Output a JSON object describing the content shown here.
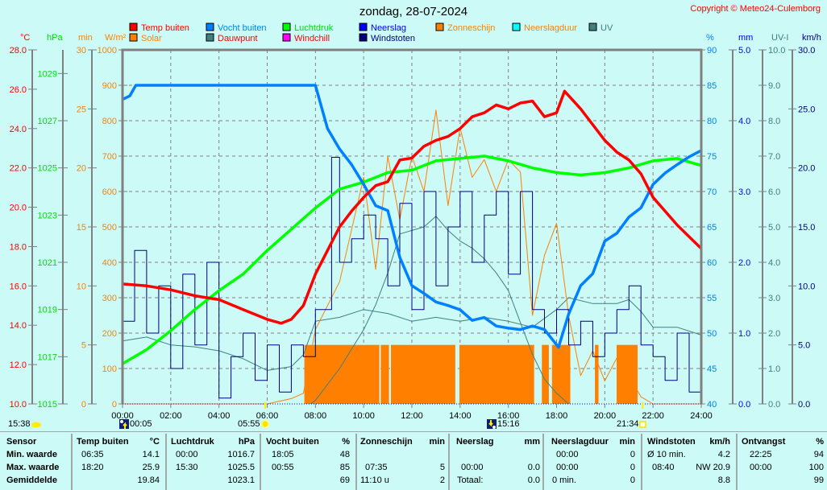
{
  "header": {
    "title": "zondag, 28-07-2024",
    "copyright": "Copyright © Meteo24-Culemborg"
  },
  "legend": [
    {
      "label": "Temp buiten",
      "swatch": "#ff0000",
      "text_color": "#ff0000"
    },
    {
      "label": "Vocht buiten",
      "swatch": "#0080ff",
      "text_color": "#0080ff"
    },
    {
      "label": "Luchtdruk",
      "swatch": "#00ff00",
      "text_color": "#00e000"
    },
    {
      "label": "Neerslag",
      "swatch": "#0000ff",
      "text_color": "#0000ff"
    },
    {
      "label": "Zonneschijn",
      "swatch": "#ff8000",
      "text_color": "#ff8000"
    },
    {
      "label": "Neerslagduur",
      "swatch": "#00ffff",
      "text_color": "#ff8000"
    },
    {
      "label": "UV",
      "swatch": "#408080",
      "text_color": "#408080"
    },
    {
      "label": "Solar",
      "swatch": "#ff8000",
      "text_color": "#ff8000"
    },
    {
      "label": "Dauwpunt",
      "swatch": "#408080",
      "text_color": "#ff0000"
    },
    {
      "label": "Windchill",
      "swatch": "#ff00ff",
      "text_color": "#ff0000"
    },
    {
      "label": "Windstoten",
      "swatch": "#000080",
      "text_color": "#000080"
    }
  ],
  "astro": {
    "moon_phase_time": "15:38",
    "moonrise": "00:05",
    "sunrise": "05:55",
    "moonset": "15:16",
    "sunset": "21:34"
  },
  "chart_data": {
    "type": "line",
    "title": "zondag, 28-07-2024",
    "x_range": [
      0,
      24
    ],
    "x_ticks": [
      "00:00",
      "02:00",
      "04:00",
      "06:00",
      "08:00",
      "10:00",
      "12:00",
      "14:00",
      "16:00",
      "18:00",
      "20:00",
      "22:00",
      "24:00"
    ],
    "grid": true,
    "axes": {
      "temp": {
        "unit": "°C",
        "range": [
          10,
          28
        ],
        "color": "#ff0000",
        "ticks": [
          "10.0",
          "12.0",
          "14.0",
          "16.0",
          "18.0",
          "20.0",
          "22.0",
          "24.0",
          "26.0",
          "28.0"
        ]
      },
      "hpa": {
        "unit": "hPa",
        "range": [
          1015,
          1030
        ],
        "color": "#00e000",
        "ticks": [
          "1015",
          "1017",
          "1019",
          "1021",
          "1023",
          "1025",
          "1027",
          "1029"
        ]
      },
      "min": {
        "unit": "min",
        "range": [
          0,
          30
        ],
        "color": "#ff8000",
        "ticks": [
          "0",
          "5",
          "10",
          "15",
          "20",
          "25",
          "30"
        ]
      },
      "wm2": {
        "unit": "W/m²",
        "range": [
          0,
          1000
        ],
        "color": "#ff8000",
        "ticks": [
          "0",
          "100",
          "200",
          "300",
          "400",
          "500",
          "600",
          "700",
          "800",
          "900",
          "1000"
        ]
      },
      "pct": {
        "unit": "%",
        "range": [
          40,
          90
        ],
        "color": "#0080ff",
        "ticks": [
          "40",
          "45",
          "50",
          "55",
          "60",
          "65",
          "70",
          "75",
          "80",
          "85",
          "90"
        ]
      },
      "mm": {
        "unit": "mm",
        "range": [
          0,
          5
        ],
        "color": "#0000ff",
        "ticks": [
          "0.0",
          "1.0",
          "2.0",
          "3.0",
          "4.0",
          "5.0"
        ]
      },
      "uv": {
        "unit": "UV-I",
        "range": [
          0,
          10
        ],
        "color": "#408080",
        "ticks": [
          "0.0",
          "1.0",
          "2.0",
          "3.0",
          "4.0",
          "5.0",
          "6.0",
          "7.0",
          "8.0",
          "9.0",
          "10.0"
        ]
      },
      "kmh": {
        "unit": "km/h",
        "range": [
          0,
          30
        ],
        "color": "#000080",
        "ticks": [
          "0.0",
          "5.0",
          "10.0",
          "15.0",
          "20.0",
          "25.0",
          "30.0"
        ]
      }
    },
    "sunshine_bars": {
      "name": "Zonneschijn",
      "axis": "min",
      "color": "#ff8000",
      "value": 5,
      "intervals": [
        [
          7.54,
          10.65
        ],
        [
          10.71,
          11.05
        ],
        [
          11.13,
          13.8
        ],
        [
          13.97,
          17.07
        ],
        [
          17.39,
          17.68
        ],
        [
          17.81,
          18.57
        ],
        [
          19.59,
          19.74
        ],
        [
          20.49,
          21.36
        ]
      ]
    },
    "series": [
      {
        "name": "Dauwpunt",
        "axis": "temp",
        "color": "#408080",
        "width": 1,
        "x": [
          0,
          1,
          2,
          3,
          4,
          5,
          6,
          7,
          7.5,
          8,
          9,
          10,
          11,
          12,
          13,
          14,
          15,
          16,
          17,
          18,
          18.5,
          19.5,
          20.5,
          21,
          21.5,
          22,
          23,
          24
        ],
        "y": [
          13.2,
          13.4,
          13.0,
          12.9,
          12.7,
          12.3,
          11.7,
          11.9,
          12.5,
          14.2,
          14.4,
          14.8,
          14.6,
          14.2,
          14.4,
          14.2,
          14.4,
          14.2,
          13.9,
          14.8,
          15.4,
          15.1,
          15.1,
          15.3,
          14.7,
          13.9,
          13.9,
          13.5
        ]
      },
      {
        "name": "UV",
        "axis": "uv",
        "color": "#408080",
        "width": 1,
        "x": [
          7.8,
          8,
          9,
          10,
          10.5,
          11,
          11.5,
          12,
          12.5,
          13,
          13.5,
          14,
          14.5,
          15,
          15.5,
          16,
          16.5,
          17,
          17.5,
          18,
          18.5
        ],
        "y": [
          0,
          0.1,
          1.0,
          2.1,
          2.8,
          3.7,
          4.8,
          4.9,
          5.0,
          5.3,
          4.9,
          4.6,
          4.4,
          4.1,
          3.7,
          3.2,
          2.3,
          1.4,
          0.7,
          0.3,
          0
        ]
      },
      {
        "name": "Solar",
        "axis": "wm2",
        "color": "#ff8000",
        "width": 1,
        "x": [
          0,
          6,
          7,
          7.5,
          8,
          9,
          10,
          10.5,
          11,
          11.5,
          12,
          12.5,
          13,
          13.5,
          14,
          14.5,
          15,
          15.5,
          16,
          16.5,
          17,
          17.5,
          18,
          18.5,
          19,
          19.5,
          20,
          20.5,
          21,
          21.5,
          22,
          24
        ],
        "y": [
          0,
          0,
          15,
          30,
          210,
          345,
          640,
          380,
          700,
          520,
          700,
          600,
          830,
          560,
          780,
          640,
          690,
          600,
          690,
          655,
          250,
          420,
          510,
          250,
          80,
          150,
          65,
          130,
          80,
          20,
          0,
          0
        ]
      },
      {
        "name": "Windstoten",
        "axis": "kmh",
        "color": "#000080",
        "width": 1,
        "step": true,
        "x": [
          0,
          0.5,
          1,
          1.5,
          2,
          2.5,
          3,
          3.5,
          4,
          4.5,
          5,
          5.5,
          6,
          6.5,
          7,
          7.5,
          8,
          8.67,
          9,
          9.5,
          10,
          10.5,
          11,
          11.5,
          12,
          12.5,
          13,
          13.5,
          14,
          14.5,
          15,
          15.5,
          16,
          16.5,
          17,
          17.5,
          18,
          18.5,
          19,
          19.5,
          20,
          20.5,
          21,
          21.5,
          22,
          22.5,
          23,
          23.5,
          24
        ],
        "y": [
          7,
          13,
          6,
          10,
          3,
          11,
          5,
          12,
          0.5,
          4,
          6,
          2,
          5,
          1,
          5,
          4,
          8,
          20.9,
          12,
          14,
          16,
          14,
          10,
          17,
          8,
          18,
          10,
          15,
          18,
          12,
          16,
          18,
          11,
          18,
          8,
          6,
          8,
          5,
          7,
          4,
          6,
          8,
          10,
          5,
          4,
          2,
          6,
          1,
          4
        ]
      },
      {
        "name": "Luchtdruk",
        "axis": "hpa",
        "color": "#00ff00",
        "width": 3.5,
        "x": [
          0,
          1,
          2,
          3,
          4,
          5,
          6,
          7,
          8,
          9,
          10,
          11,
          12,
          13,
          14,
          15,
          16,
          17,
          18,
          19,
          20,
          21,
          22,
          23,
          24
        ],
        "y": [
          1016.7,
          1017.3,
          1018.1,
          1019.0,
          1019.8,
          1020.5,
          1021.5,
          1022.4,
          1023.3,
          1024.1,
          1024.4,
          1024.8,
          1024.9,
          1025.3,
          1025.4,
          1025.5,
          1025.3,
          1025.0,
          1024.8,
          1024.7,
          1024.8,
          1025.0,
          1025.3,
          1025.4,
          1025.1
        ]
      },
      {
        "name": "Vocht buiten",
        "axis": "pct",
        "color": "#0080ff",
        "width": 3.5,
        "x": [
          0,
          0.3,
          0.55,
          1,
          4.5,
          5,
          8,
          8.5,
          9,
          9.5,
          10,
          10.5,
          11,
          11.5,
          12,
          12.5,
          13,
          13.5,
          14,
          14.5,
          15,
          15.5,
          16,
          16.5,
          17,
          17.5,
          18.08,
          18.5,
          19,
          19.5,
          20,
          20.5,
          21,
          21.5,
          22,
          22.5,
          23,
          23.5,
          24
        ],
        "y": [
          83,
          83.5,
          85,
          85,
          85,
          85,
          85,
          78.9,
          76,
          73.8,
          71,
          68,
          67.3,
          60.7,
          56.7,
          55.6,
          54.4,
          53.9,
          53.3,
          51.8,
          52.2,
          51,
          50.7,
          50.5,
          51,
          50.5,
          48,
          52.7,
          56.7,
          58.4,
          63,
          64.1,
          66.4,
          67.7,
          71,
          72.6,
          73.8,
          74.9,
          75.8
        ]
      },
      {
        "name": "Temp buiten",
        "axis": "temp",
        "color": "#ff0000",
        "width": 3.5,
        "x": [
          0,
          1,
          2,
          3,
          4,
          5,
          6,
          6.58,
          7,
          7.5,
          8,
          8.5,
          9,
          9.5,
          10,
          10.5,
          11,
          11.5,
          12,
          12.5,
          13,
          13.5,
          14,
          14.5,
          15,
          15.5,
          16,
          16.5,
          17,
          17.5,
          18,
          18.33,
          19,
          19.5,
          20,
          20.5,
          21,
          21.5,
          22,
          22.5,
          23,
          23.5,
          24
        ],
        "y": [
          16.1,
          16.0,
          15.8,
          15.5,
          15.3,
          14.8,
          14.3,
          14.1,
          14.3,
          15.0,
          16.6,
          17.8,
          19.0,
          19.8,
          20.5,
          21.1,
          21.3,
          22.4,
          22.5,
          23.1,
          23.4,
          23.6,
          24.0,
          24.6,
          24.8,
          25.2,
          25.0,
          25.3,
          25.4,
          24.6,
          24.8,
          25.9,
          25.0,
          24.2,
          23.4,
          22.8,
          22.4,
          21.7,
          20.5,
          19.8,
          19.1,
          18.5,
          17.9
        ]
      },
      {
        "name": "Neerslag",
        "axis": "mm",
        "color": "#0000ff",
        "width": 1,
        "dotted": true,
        "x": [
          0,
          24
        ],
        "y": [
          0,
          0
        ]
      }
    ]
  },
  "table": {
    "columns": [
      {
        "header": "Sensor",
        "unit": "",
        "rows": [
          {
            "time": "Min. waarde",
            "value": ""
          },
          {
            "time": "Max. waarde",
            "value": ""
          },
          {
            "time": "Gemiddelde",
            "value": ""
          }
        ]
      },
      {
        "header": "Temp buiten",
        "unit": "°C",
        "rows": [
          {
            "time": "06:35",
            "value": "14.1"
          },
          {
            "time": "18:20",
            "value": "25.9"
          },
          {
            "time": "",
            "value": "19.84"
          }
        ]
      },
      {
        "header": "Luchtdruk",
        "unit": "hPa",
        "rows": [
          {
            "time": "00:00",
            "value": "1016.7"
          },
          {
            "time": "15:30",
            "value": "1025.5"
          },
          {
            "time": "",
            "value": "1023.1"
          }
        ]
      },
      {
        "header": "Vocht buiten",
        "unit": "%",
        "rows": [
          {
            "time": "18:05",
            "value": "48"
          },
          {
            "time": "00:55",
            "value": "85"
          },
          {
            "time": "",
            "value": "69"
          }
        ]
      },
      {
        "header": "Zonneschijn",
        "unit": "min",
        "rows": [
          {
            "time": "",
            "value": ""
          },
          {
            "time": "07:35",
            "value": "5"
          },
          {
            "time": "11:10 u",
            "value": "2"
          }
        ]
      },
      {
        "header": "Neerslag",
        "unit": "mm",
        "rows": [
          {
            "time": "",
            "value": ""
          },
          {
            "time": "00:00",
            "value": "0.0"
          },
          {
            "time": "Totaal:",
            "value": "0.0"
          }
        ]
      },
      {
        "header": "Neerslagduur",
        "unit": "min",
        "rows": [
          {
            "time": "00:00",
            "value": "0"
          },
          {
            "time": "00:00",
            "value": "0"
          },
          {
            "time": "0 min.",
            "value": "0"
          }
        ]
      },
      {
        "header": "Windstoten",
        "unit": "km/h",
        "rows": [
          {
            "time": "Ø 10 min.",
            "value": "4.2"
          },
          {
            "time": "08:40",
            "value": "NW 20.9"
          },
          {
            "time": "",
            "value": "8.8"
          }
        ]
      },
      {
        "header": "Ontvangst",
        "unit": "%",
        "rows": [
          {
            "time": "22:25",
            "value": "94"
          },
          {
            "time": "00:00",
            "value": "100"
          },
          {
            "time": "",
            "value": "99"
          }
        ]
      }
    ]
  }
}
